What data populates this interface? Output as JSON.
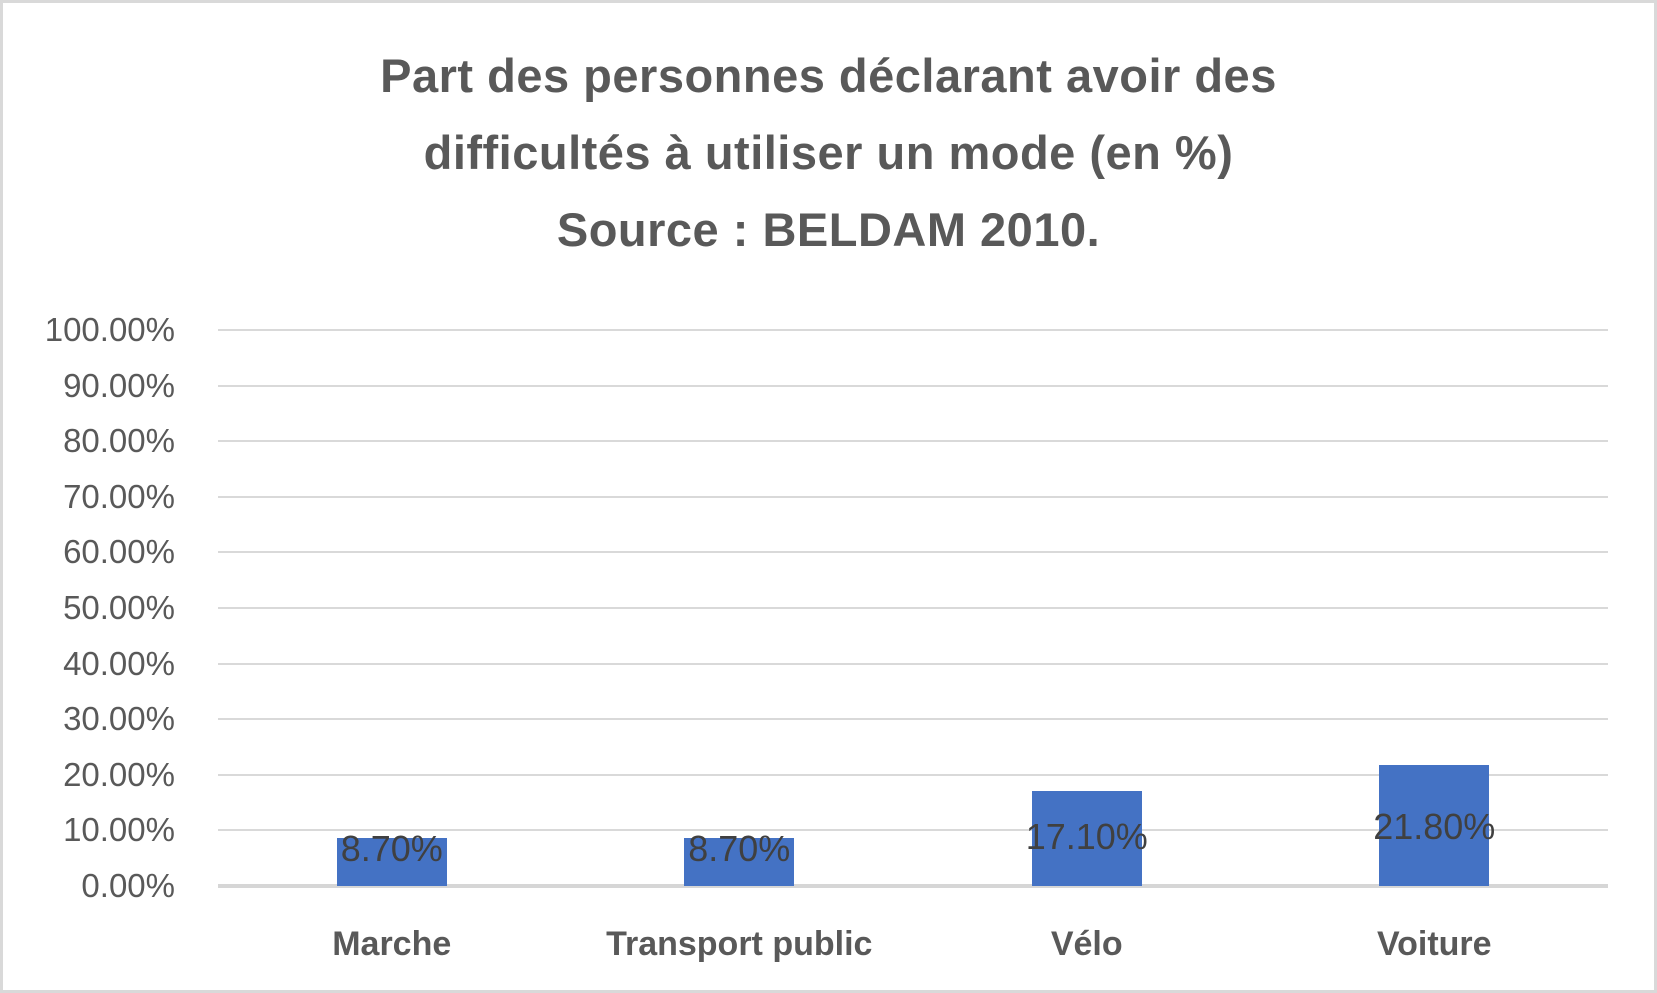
{
  "window": {
    "background_color": "#ffffff",
    "border_color": "#d9d9d9"
  },
  "chart_data": {
    "type": "bar",
    "title": "Part des personnes déclarant avoir des difficultés à utiliser un mode (en %) Source : BELDAM 2010.",
    "title_lines": [
      "Part des personnes déclarant avoir des",
      "difficultés à utiliser un mode (en %)",
      "Source : BELDAM 2010."
    ],
    "categories": [
      "Marche",
      "Transport public",
      "Vélo",
      "Voiture"
    ],
    "values": [
      8.7,
      8.7,
      17.1,
      21.8
    ],
    "data_labels": [
      "8.70%",
      "8.70%",
      "17.10%",
      "21.80%"
    ],
    "xlabel": "",
    "ylabel": "",
    "ylim": [
      0,
      100
    ],
    "y_tick_step": 10,
    "y_ticks": [
      0,
      10,
      20,
      30,
      40,
      50,
      60,
      70,
      80,
      90,
      100
    ],
    "y_tick_labels": [
      "0.00%",
      "10.00%",
      "20.00%",
      "30.00%",
      "40.00%",
      "50.00%",
      "60.00%",
      "70.00%",
      "80.00%",
      "90.00%",
      "100.00%"
    ],
    "grid": true,
    "legend_position": "none",
    "bar_color": "#4472C4",
    "gridline_color": "#d9d9d9",
    "axis_line_color": "#d6d6d6",
    "title_color": "#595959",
    "tick_label_color": "#595959",
    "data_label_color": "#404040",
    "category_label_color": "#595959"
  }
}
